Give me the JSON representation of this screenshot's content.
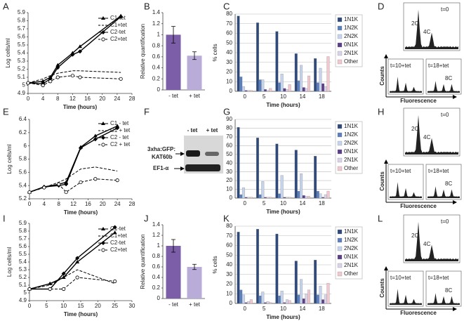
{
  "chart_data": [
    {
      "type": "line",
      "panel": "A",
      "xlabel": "Time (hours)",
      "ylabel": "Log cells/ml",
      "x": [
        0,
        4,
        6,
        8,
        12,
        14,
        25
      ],
      "xlim": [
        0,
        28
      ],
      "xticks": [
        0,
        4,
        8,
        12,
        16,
        20,
        24,
        28
      ],
      "ylim": [
        4.9,
        5.9
      ],
      "yticks": [
        4.9,
        5,
        5.1,
        5.2,
        5.3,
        5.4,
        5.5,
        5.6,
        5.7,
        5.8,
        5.9
      ],
      "series": [
        {
          "name": "C1-tet",
          "color": "#000000",
          "dash": false,
          "marker": "triangle",
          "values": [
            5.03,
            5.05,
            5.1,
            5.25,
            5.4,
            5.48,
            5.86
          ]
        },
        {
          "name": "C1+tet",
          "color": "#000000",
          "dash": true,
          "marker": "none",
          "values": [
            5.03,
            5.08,
            5.12,
            5.15,
            5.18,
            5.18,
            5.16
          ]
        },
        {
          "name": "C2-tet",
          "color": "#000000",
          "dash": false,
          "marker": "diamond",
          "values": [
            5.03,
            5.02,
            5.08,
            5.22,
            5.38,
            5.42,
            5.85
          ]
        },
        {
          "name": "C2+tet",
          "color": "#000000",
          "dash": true,
          "marker": "circle",
          "values": [
            5.03,
            5.0,
            5.05,
            5.1,
            5.12,
            5.1,
            5.08
          ]
        }
      ]
    },
    {
      "type": "bar",
      "panel": "B",
      "ylabel": "Relative quantification",
      "categories": [
        "- tet",
        "+ tet"
      ],
      "values": [
        1.0,
        0.62
      ],
      "errors": [
        0.15,
        0.07
      ],
      "colors": [
        "#7b5ea7",
        "#b9acd8"
      ],
      "ylim": [
        0,
        1.4
      ],
      "yticks": [
        0,
        0.2,
        0.4,
        0.6,
        0.8,
        1,
        1.2,
        1.4
      ]
    },
    {
      "type": "grouped-bar",
      "panel": "C",
      "xlabel": "Time (hours)",
      "ylabel": "% cells",
      "categories": [
        "0",
        "5",
        "10",
        "14",
        "18"
      ],
      "ylim": [
        0,
        80
      ],
      "yticks": [
        0,
        10,
        20,
        30,
        40,
        50,
        60,
        70,
        80
      ],
      "grid": true,
      "series": [
        {
          "name": "1N1K",
          "color": "#2e4a7d",
          "values": [
            78,
            71,
            62,
            39,
            34
          ]
        },
        {
          "name": "1N2K",
          "color": "#5a7fbf",
          "values": [
            15,
            12,
            9,
            11,
            9
          ]
        },
        {
          "name": "2N2K",
          "color": "#c5d3ec",
          "values": [
            5,
            12,
            18,
            27,
            24
          ]
        },
        {
          "name": "0N1K",
          "color": "#5b3d8a",
          "values": [
            1,
            2,
            3,
            4,
            8
          ]
        },
        {
          "name": "2N1K",
          "color": "#d8d3e8",
          "values": [
            1,
            1,
            2,
            3,
            5
          ]
        },
        {
          "name": "Other",
          "color": "#f2c7cf",
          "values": [
            1,
            3,
            7,
            16,
            36
          ]
        }
      ]
    },
    {
      "type": "line",
      "panel": "E",
      "xlabel": "Time (hours)",
      "ylabel": "Log cells/ml",
      "x": [
        0,
        4,
        8,
        10,
        14,
        18,
        24
      ],
      "xlim": [
        0,
        28
      ],
      "xticks": [
        0,
        4,
        8,
        12,
        16,
        20,
        24,
        28
      ],
      "ylim": [
        5.2,
        6.4
      ],
      "yticks": [
        5.2,
        5.4,
        5.6,
        5.8,
        6,
        6.2,
        6.4
      ],
      "series": [
        {
          "name": "C1 - tet",
          "color": "#000000",
          "dash": false,
          "marker": "triangle",
          "values": [
            5.3,
            5.38,
            5.42,
            5.45,
            5.98,
            6.15,
            6.3
          ]
        },
        {
          "name": "C1 + tet",
          "color": "#000000",
          "dash": true,
          "marker": "none",
          "values": [
            5.3,
            5.37,
            5.45,
            5.5,
            5.65,
            5.68,
            5.62
          ]
        },
        {
          "name": "C2 - tet",
          "color": "#000000",
          "dash": false,
          "marker": "diamond",
          "values": [
            5.3,
            5.38,
            5.4,
            5.42,
            5.97,
            6.1,
            6.27
          ]
        },
        {
          "name": "C2 + tet",
          "color": "#000000",
          "dash": true,
          "marker": "circle",
          "values": [
            5.3,
            5.37,
            5.42,
            5.3,
            5.45,
            5.5,
            5.48
          ]
        }
      ]
    },
    {
      "type": "grouped-bar",
      "panel": "G",
      "xlabel": "Time (hours)",
      "ylabel": "% cells",
      "categories": [
        "0",
        "5",
        "10",
        "14",
        "18"
      ],
      "ylim": [
        0,
        90
      ],
      "yticks": [
        0,
        10,
        20,
        30,
        40,
        50,
        60,
        70,
        80,
        90
      ],
      "grid": true,
      "series": [
        {
          "name": "1N1K",
          "color": "#2e4a7d",
          "values": [
            81,
            69,
            62,
            55,
            48
          ]
        },
        {
          "name": "1N2K",
          "color": "#5a7fbf",
          "values": [
            4,
            4,
            5,
            8,
            8
          ]
        },
        {
          "name": "2N2K",
          "color": "#c5d3ec",
          "values": [
            12,
            19,
            26,
            28,
            5
          ]
        },
        {
          "name": "0N1K",
          "color": "#5b3d8a",
          "values": [
            1,
            1,
            1,
            3,
            1
          ]
        },
        {
          "name": "2N1K",
          "color": "#d8d3e8",
          "values": [
            1,
            1,
            1,
            2,
            4
          ]
        },
        {
          "name": "Other",
          "color": "#f2c7cf",
          "values": [
            1,
            1,
            1,
            2,
            8
          ]
        }
      ]
    },
    {
      "type": "line",
      "panel": "I",
      "xlabel": "Time (hours)",
      "ylabel": "Log cells/ml",
      "x": [
        0,
        6,
        10,
        14,
        25
      ],
      "xlim": [
        0,
        30
      ],
      "xticks": [
        0,
        5,
        10,
        15,
        20,
        25,
        30
      ],
      "ylim": [
        4.9,
        5.9
      ],
      "yticks": [
        4.9,
        5,
        5.1,
        5.2,
        5.3,
        5.4,
        5.5,
        5.6,
        5.7,
        5.8,
        5.9
      ],
      "series": [
        {
          "name": "C1-tet",
          "color": "#000000",
          "dash": false,
          "marker": "triangle",
          "values": [
            5.05,
            5.12,
            5.2,
            5.4,
            5.78
          ]
        },
        {
          "name": "C1+tet",
          "color": "#000000",
          "dash": true,
          "marker": "none",
          "values": [
            5.05,
            5.1,
            5.2,
            5.3,
            5.12
          ]
        },
        {
          "name": "C2-tet",
          "color": "#000000",
          "dash": false,
          "marker": "diamond",
          "values": [
            5.05,
            5.05,
            5.25,
            5.45,
            5.85
          ]
        },
        {
          "name": "C2+tet",
          "color": "#000000",
          "dash": true,
          "marker": "circle",
          "values": [
            5.05,
            5.05,
            5.05,
            5.2,
            5.15
          ]
        }
      ]
    },
    {
      "type": "bar",
      "panel": "J",
      "ylabel": "Relative quantification",
      "categories": [
        "- tet",
        "+ tet"
      ],
      "values": [
        1.0,
        0.6
      ],
      "errors": [
        0.12,
        0.05
      ],
      "colors": [
        "#7b5ea7",
        "#b9acd8"
      ],
      "ylim": [
        0,
        1.4
      ],
      "yticks": [
        0,
        0.2,
        0.4,
        0.6,
        0.8,
        1,
        1.2,
        1.4
      ]
    },
    {
      "type": "grouped-bar",
      "panel": "K",
      "xlabel": "Time (hours)",
      "ylabel": "% cells",
      "categories": [
        "0",
        "5",
        "10",
        "14",
        "18"
      ],
      "ylim": [
        0,
        80
      ],
      "yticks": [
        0,
        10,
        20,
        30,
        40,
        50,
        60,
        70,
        80
      ],
      "grid": true,
      "series": [
        {
          "name": "1N1K",
          "color": "#2e4a7d",
          "values": [
            74,
            77,
            72,
            44,
            45
          ]
        },
        {
          "name": "1N2K",
          "color": "#5a7fbf",
          "values": [
            14,
            8,
            8,
            9,
            9
          ]
        },
        {
          "name": "2N2K",
          "color": "#c5d3ec",
          "values": [
            9,
            12,
            13,
            25,
            18
          ]
        },
        {
          "name": "0N1K",
          "color": "#5b3d8a",
          "values": [
            1,
            1,
            1,
            5,
            4
          ]
        },
        {
          "name": "2N1K",
          "color": "#d8d3e8",
          "values": [
            2,
            2,
            4,
            10,
            9
          ]
        },
        {
          "name": "Other",
          "color": "#f2c7cf",
          "values": [
            4,
            1,
            3,
            14,
            21
          ]
        }
      ]
    }
  ],
  "blot": {
    "panel": "F",
    "lanes": [
      "- tet",
      "+ tet"
    ],
    "rows": [
      [
        "3xha:GFP:",
        "KAT60b"
      ],
      [
        "EF1-α"
      ]
    ]
  },
  "flow_panels": [
    {
      "panel": "D",
      "top": "t=0",
      "peaks": [
        "2C",
        "4C"
      ],
      "left": "t=10+tet",
      "right": "t=18+tet",
      "peak8": "8C",
      "ylabel": "Counts",
      "xlabel": "Fluorescence"
    },
    {
      "panel": "H",
      "top": "t=0",
      "peaks": [
        "2C",
        "4C"
      ],
      "left": "t=10+tet",
      "right": "t=18+tet",
      "peak8": "8C",
      "ylabel": "Counts",
      "xlabel": "Fluorescence"
    },
    {
      "panel": "L",
      "top": "t=0",
      "peaks": [
        "2C",
        "4C"
      ],
      "left": "t=10+tet",
      "right": "t=18+tet",
      "peak8": "8C",
      "ylabel": "Counts",
      "xlabel": "Fluorescence"
    }
  ]
}
